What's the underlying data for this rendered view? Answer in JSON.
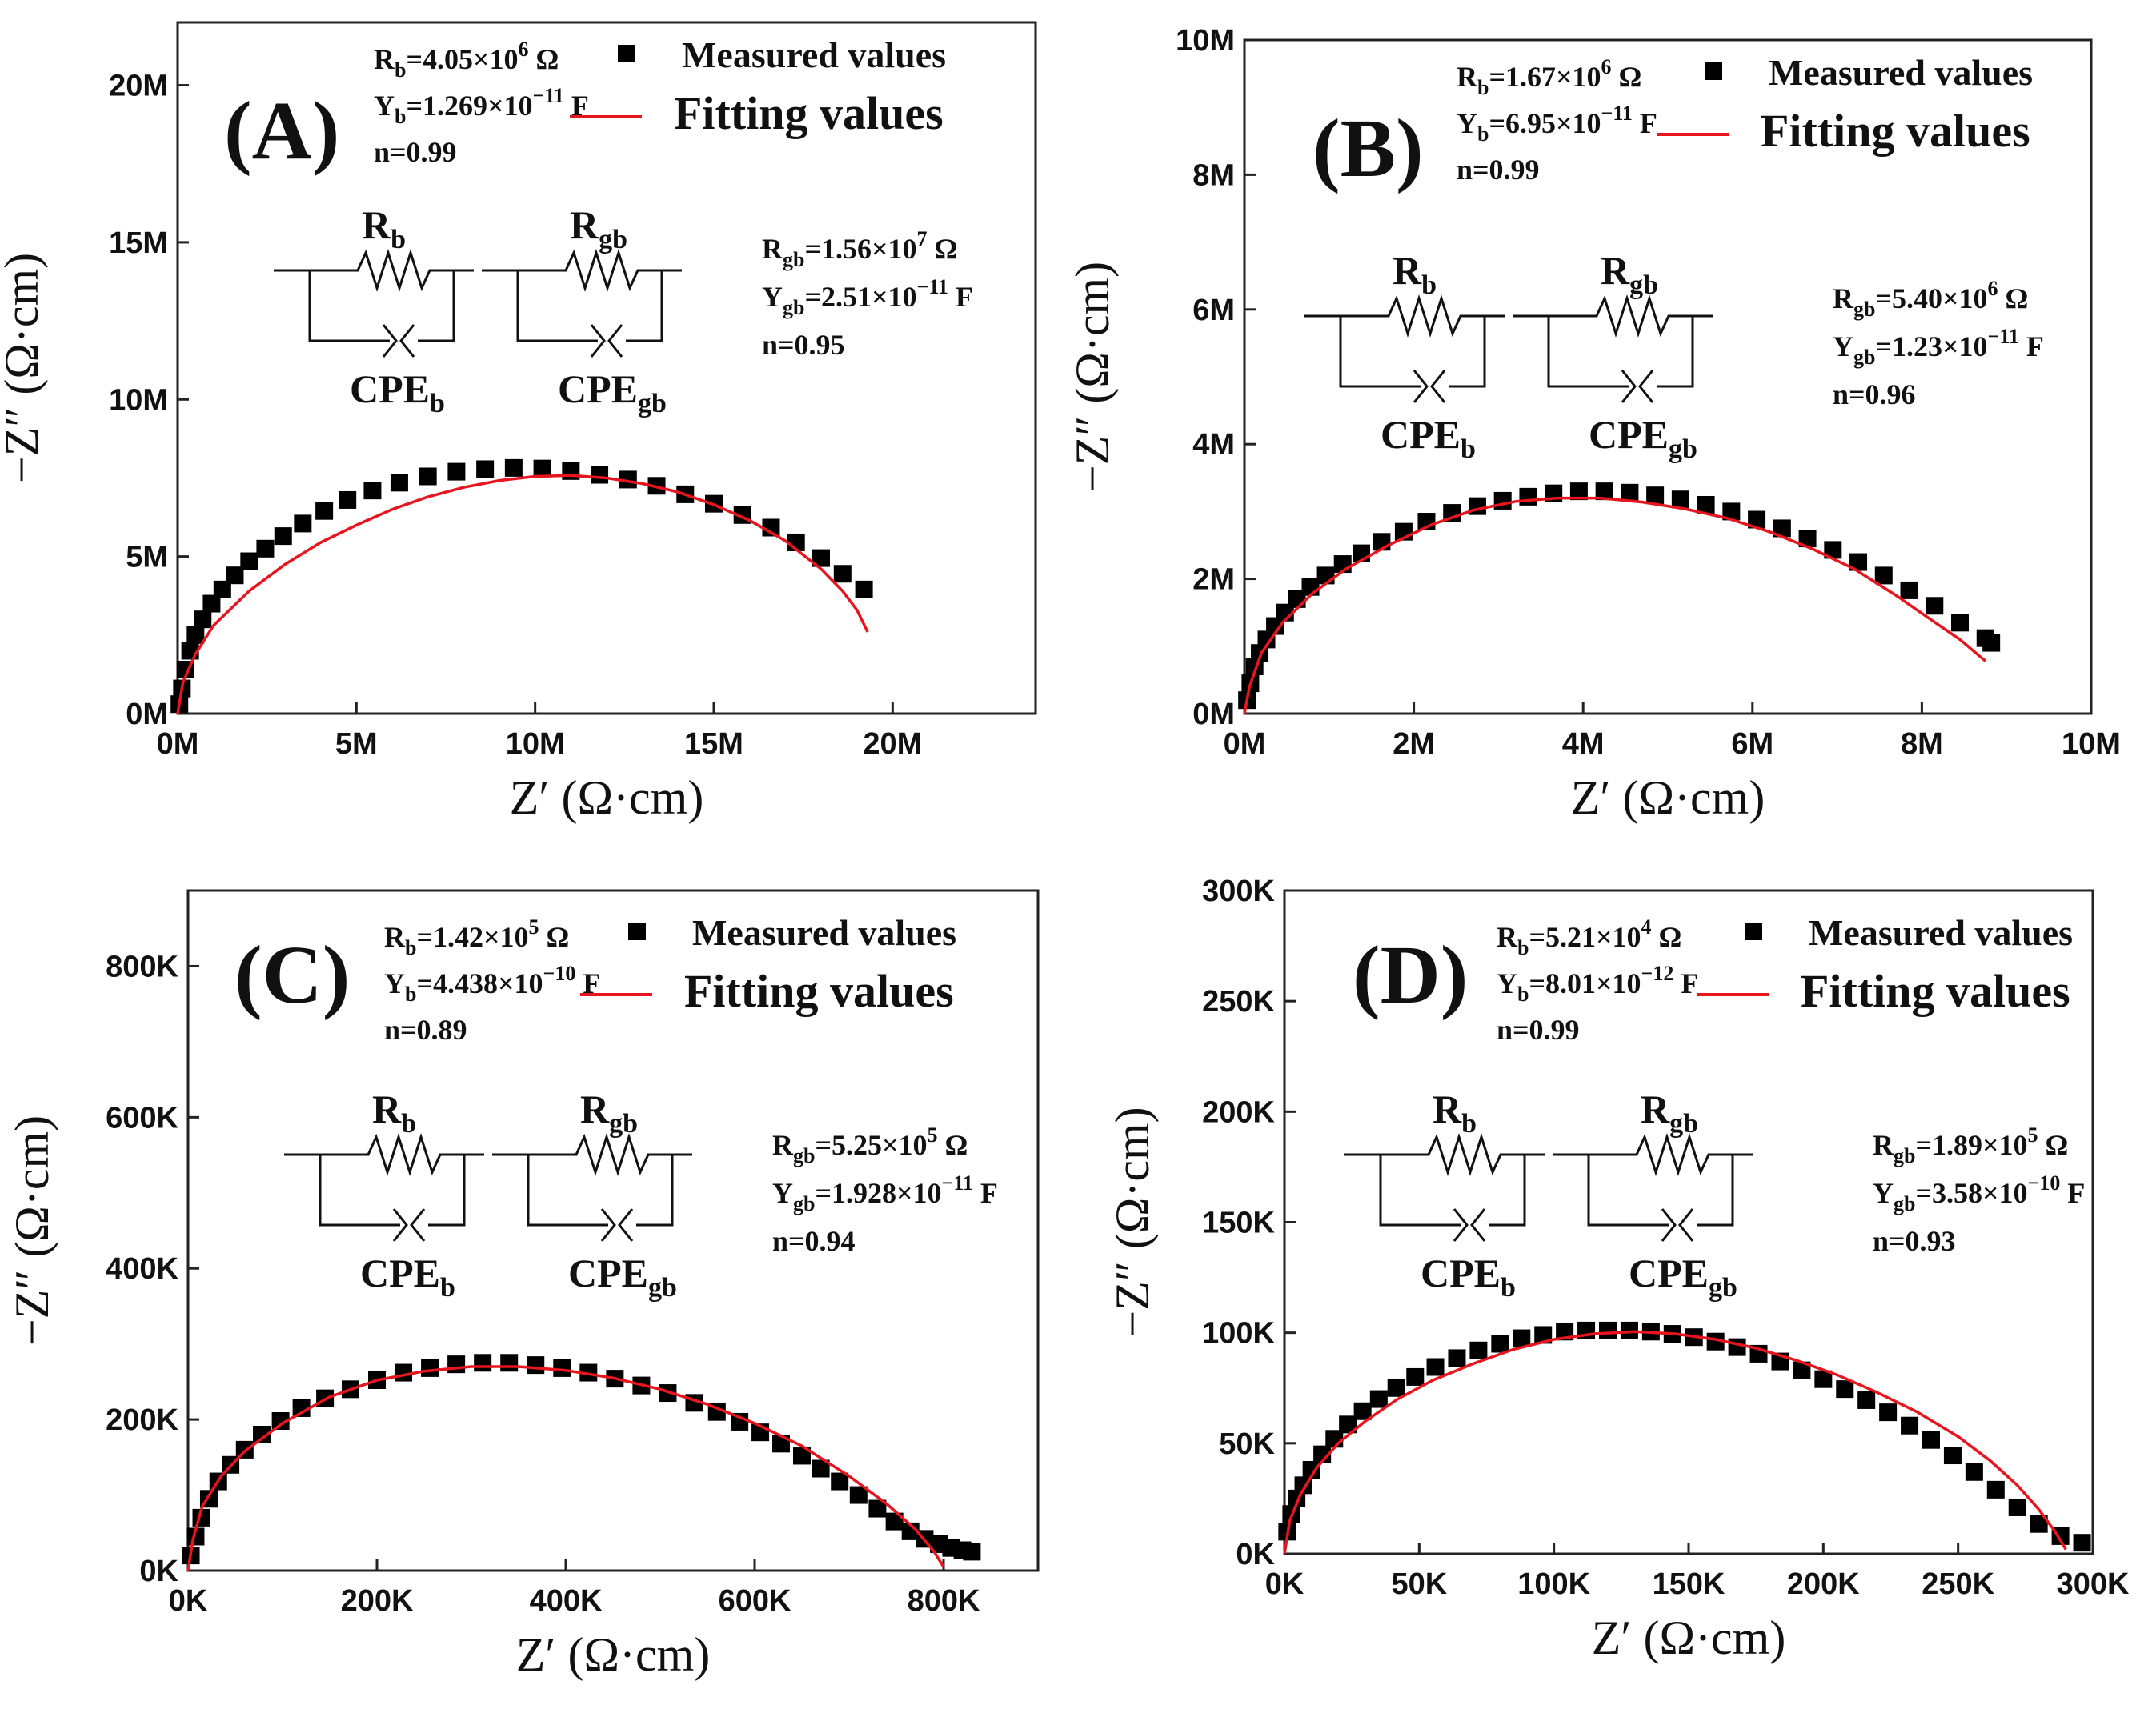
{
  "colors": {
    "measured": "#000000",
    "fitting": "#e8141e",
    "axis": "#222222"
  },
  "chart_data": [
    {
      "panel": "(A)",
      "type": "scatter",
      "xlabel": "Z′ (Ω·cm)",
      "ylabel": "−Z″ (Ω·cm)",
      "xlim": [
        0,
        24
      ],
      "ylim": [
        0,
        22
      ],
      "unit": "M",
      "xticks": [
        "0M",
        "5M",
        "10M",
        "15M",
        "20M"
      ],
      "yticks": [
        "0M",
        "5M",
        "10M",
        "15M",
        "20M"
      ],
      "legend": {
        "measured": "Measured values",
        "fitting": "Fitting values"
      },
      "circuit": {
        "rb": "R",
        "rb_sub": "b",
        "rgb": "R",
        "rgb_sub": "gb",
        "cpeb": "CPE",
        "cpeb_sub": "b",
        "cpegb": "CPE",
        "cpegb_sub": "gb"
      },
      "params_b": [
        "R_b=4.05×10^6 Ω",
        "Y_b=1.269×10^−11 F",
        "n=0.99"
      ],
      "params_gb": [
        "R_gb=1.56×10^7 Ω",
        "Y_gb=2.51×10^−11 F",
        "n=0.95"
      ],
      "series": [
        {
          "name": "Measured values",
          "kind": "scatter",
          "x": [
            0.05,
            0.12,
            0.22,
            0.35,
            0.5,
            0.7,
            0.95,
            1.25,
            1.6,
            2.0,
            2.45,
            2.95,
            3.5,
            4.1,
            4.75,
            5.45,
            6.2,
            7.0,
            7.8,
            8.6,
            9.4,
            10.2,
            11.0,
            11.8,
            12.6,
            13.4,
            14.2,
            15.0,
            15.8,
            16.6,
            17.3,
            18.0,
            18.6,
            19.2
          ],
          "y": [
            0.3,
            0.8,
            1.4,
            2.0,
            2.5,
            3.0,
            3.5,
            3.95,
            4.4,
            4.85,
            5.25,
            5.65,
            6.05,
            6.45,
            6.8,
            7.1,
            7.35,
            7.55,
            7.7,
            7.78,
            7.82,
            7.8,
            7.72,
            7.6,
            7.45,
            7.25,
            6.98,
            6.68,
            6.32,
            5.92,
            5.45,
            4.95,
            4.45,
            3.95
          ]
        },
        {
          "name": "Fitting values",
          "kind": "line",
          "x": [
            0.0,
            0.15,
            0.5,
            1.0,
            2.0,
            3.0,
            4.0,
            5.0,
            6.0,
            7.0,
            8.0,
            9.0,
            10.0,
            11.0,
            12.0,
            13.0,
            14.0,
            15.0,
            16.0,
            17.0,
            18.0,
            18.6,
            19.0,
            19.3
          ],
          "y": [
            0.0,
            1.0,
            1.9,
            2.8,
            3.9,
            4.75,
            5.45,
            6.0,
            6.5,
            6.9,
            7.2,
            7.42,
            7.55,
            7.58,
            7.5,
            7.32,
            7.05,
            6.65,
            6.15,
            5.5,
            4.6,
            3.9,
            3.3,
            2.6
          ]
        }
      ]
    },
    {
      "panel": "(B)",
      "type": "scatter",
      "xlabel": "Z′ (Ω·cm)",
      "ylabel": "−Z″ (Ω·cm)",
      "xlim": [
        0,
        10
      ],
      "ylim": [
        0,
        10
      ],
      "unit": "M",
      "xticks": [
        "0M",
        "2M",
        "4M",
        "6M",
        "8M",
        "10M"
      ],
      "yticks": [
        "0M",
        "2M",
        "4M",
        "6M",
        "8M",
        "10M"
      ],
      "legend": {
        "measured": "Measured values",
        "fitting": "Fitting values"
      },
      "circuit": {
        "rb": "R",
        "rb_sub": "b",
        "rgb": "R",
        "rgb_sub": "gb",
        "cpeb": "CPE",
        "cpeb_sub": "b",
        "cpegb": "CPE",
        "cpegb_sub": "gb"
      },
      "params_b": [
        "R_b=1.67×10^6 Ω",
        "Y_b=6.95×10^−11 F",
        "n=0.99"
      ],
      "params_gb": [
        "R_gb=5.40×10^6 Ω",
        "Y_gb=1.23×10^−11 F",
        "n=0.96"
      ],
      "series": [
        {
          "name": "Measured values",
          "kind": "scatter",
          "x": [
            0.03,
            0.07,
            0.12,
            0.18,
            0.26,
            0.36,
            0.48,
            0.62,
            0.78,
            0.96,
            1.16,
            1.38,
            1.62,
            1.88,
            2.15,
            2.45,
            2.75,
            3.05,
            3.35,
            3.65,
            3.95,
            4.25,
            4.55,
            4.85,
            5.15,
            5.45,
            5.75,
            6.05,
            6.35,
            6.65,
            6.95,
            7.25,
            7.55,
            7.85,
            8.15,
            8.45,
            8.75,
            8.82
          ],
          "y": [
            0.2,
            0.45,
            0.7,
            0.9,
            1.1,
            1.3,
            1.5,
            1.7,
            1.88,
            2.05,
            2.22,
            2.38,
            2.55,
            2.7,
            2.85,
            2.98,
            3.08,
            3.16,
            3.22,
            3.27,
            3.3,
            3.3,
            3.28,
            3.24,
            3.18,
            3.1,
            3.0,
            2.88,
            2.75,
            2.6,
            2.43,
            2.25,
            2.05,
            1.83,
            1.6,
            1.35,
            1.12,
            1.05
          ]
        },
        {
          "name": "Fitting values",
          "kind": "line",
          "x": [
            0.0,
            0.06,
            0.2,
            0.45,
            0.8,
            1.2,
            1.7,
            2.2,
            2.7,
            3.2,
            3.7,
            4.2,
            4.7,
            5.2,
            5.7,
            6.2,
            6.7,
            7.2,
            7.7,
            8.1,
            8.45,
            8.75
          ],
          "y": [
            0.0,
            0.4,
            0.9,
            1.35,
            1.78,
            2.15,
            2.5,
            2.8,
            3.02,
            3.15,
            3.2,
            3.2,
            3.14,
            3.04,
            2.9,
            2.7,
            2.45,
            2.15,
            1.75,
            1.4,
            1.1,
            0.78
          ]
        }
      ]
    },
    {
      "panel": "(C)",
      "type": "scatter",
      "xlabel": "Z′ (Ω·cm)",
      "ylabel": "−Z″ (Ω·cm)",
      "xlim": [
        0,
        900
      ],
      "ylim": [
        0,
        900
      ],
      "unit": "K",
      "xticks": [
        "0K",
        "200K",
        "400K",
        "600K",
        "800K"
      ],
      "yticks": [
        "0K",
        "200K",
        "400K",
        "600K",
        "800K"
      ],
      "legend": {
        "measured": "Measured values",
        "fitting": "Fitting values"
      },
      "circuit": {
        "rb": "R",
        "rb_sub": "b",
        "rgb": "R",
        "rgb_sub": "gb",
        "cpeb": "CPE",
        "cpeb_sub": "b",
        "cpegb": "CPE",
        "cpegb_sub": "gb"
      },
      "params_b": [
        "R_b=1.42×10^5 Ω",
        "Y_b=4.438×10^−10 F",
        "n=0.89"
      ],
      "params_gb": [
        "R_gb=5.25×10^5 Ω",
        "Y_gb=1.928×10^−11 F",
        "n=0.94"
      ],
      "series": [
        {
          "name": "Measured values",
          "kind": "scatter",
          "x": [
            3,
            8,
            14,
            22,
            32,
            45,
            60,
            78,
            98,
            120,
            145,
            172,
            200,
            228,
            256,
            284,
            312,
            340,
            368,
            396,
            424,
            452,
            480,
            508,
            536,
            560,
            584,
            606,
            628,
            650,
            670,
            690,
            710,
            730,
            748,
            765,
            780,
            795,
            808,
            820,
            830
          ],
          "y": [
            20,
            45,
            70,
            95,
            118,
            140,
            160,
            180,
            198,
            215,
            228,
            240,
            252,
            262,
            268,
            273,
            275,
            275,
            272,
            268,
            262,
            254,
            245,
            235,
            222,
            210,
            197,
            183,
            168,
            152,
            135,
            118,
            100,
            82,
            65,
            52,
            42,
            35,
            30,
            27,
            25
          ]
        },
        {
          "name": "Fitting values",
          "kind": "line",
          "x": [
            0,
            5,
            15,
            35,
            60,
            100,
            150,
            200,
            250,
            300,
            350,
            400,
            450,
            500,
            550,
            600,
            650,
            700,
            740,
            770,
            790,
            800
          ],
          "y": [
            0,
            40,
            85,
            125,
            158,
            195,
            230,
            252,
            264,
            270,
            270,
            265,
            255,
            240,
            220,
            195,
            165,
            125,
            88,
            55,
            25,
            5
          ]
        }
      ]
    },
    {
      "panel": "(D)",
      "type": "scatter",
      "xlabel": "Z′ (Ω·cm)",
      "ylabel": "−Z″ (Ω·cm)",
      "xlim": [
        0,
        300
      ],
      "ylim": [
        0,
        300
      ],
      "unit": "K",
      "xticks": [
        "0K",
        "50K",
        "100K",
        "150K",
        "200K",
        "250K",
        "300K"
      ],
      "yticks": [
        "0K",
        "50K",
        "100K",
        "150K",
        "200K",
        "250K",
        "300K"
      ],
      "legend": {
        "measured": "Measured values",
        "fitting": "Fitting values"
      },
      "circuit": {
        "rb": "R",
        "rb_sub": "b",
        "rgb": "R",
        "rgb_sub": "gb",
        "cpeb": "CPE",
        "cpeb_sub": "b",
        "cpegb": "CPE",
        "cpegb_sub": "gb"
      },
      "params_b": [
        "R_b=5.21×10^4 Ω",
        "Y_b=8.01×10^−12 F",
        "n=0.99"
      ],
      "params_gb": [
        "R_gb=1.89×10^5 Ω",
        "Y_gb=3.58×10^−10 F",
        "n=0.93"
      ],
      "series": [
        {
          "name": "Measured values",
          "kind": "scatter",
          "x": [
            1,
            2.5,
            4.5,
            7,
            10,
            14,
            18.5,
            23.5,
            29,
            35,
            41.5,
            48.5,
            56,
            64,
            72,
            80,
            88,
            96,
            104,
            112,
            120,
            128,
            136,
            144,
            152,
            160,
            168,
            176,
            184,
            192,
            200,
            208,
            216,
            224,
            232,
            240,
            248,
            256,
            264,
            272,
            280,
            288,
            296
          ],
          "y": [
            10,
            18,
            25,
            31,
            38,
            45,
            52,
            58.5,
            64.5,
            70,
            75,
            80,
            84.5,
            88.5,
            92,
            95,
            97.5,
            99,
            100.5,
            101,
            101,
            101,
            100.5,
            99.5,
            98,
            96,
            93.5,
            90.5,
            87,
            83,
            79,
            74.5,
            69.5,
            64,
            58,
            51.5,
            44.5,
            37,
            29,
            21,
            13.5,
            8,
            5
          ]
        },
        {
          "name": "Fitting values",
          "kind": "line",
          "x": [
            0,
            2,
            6,
            12,
            20,
            30,
            42,
            55,
            70,
            85,
            100,
            115,
            130,
            145,
            160,
            175,
            190,
            205,
            220,
            235,
            250,
            262,
            272,
            280,
            286,
            290
          ],
          "y": [
            0,
            15,
            27,
            39,
            50,
            60,
            70,
            78.5,
            86,
            92.5,
            97,
            99.5,
            100.5,
            99.5,
            97,
            93,
            87.5,
            81,
            73,
            64,
            53,
            42,
            31,
            20,
            10,
            2
          ]
        }
      ]
    }
  ]
}
